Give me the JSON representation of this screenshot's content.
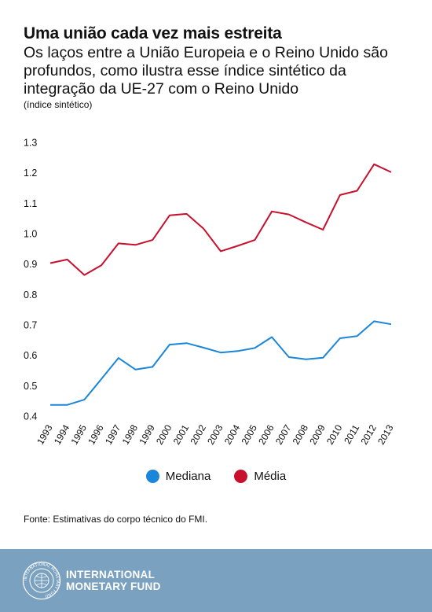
{
  "title": "Uma união cada vez mais estreita",
  "subtitle": "Os laços entre a União Europeia e o Reino Unido são profundos, como ilustra esse índice sintético da integração da UE-27 com o Reino Unido",
  "unit_note": "(índice sintético)",
  "source": "Fonte: Estimativas do corpo técnico do FMI.",
  "footer": {
    "org_line1": "INTERNATIONAL",
    "org_line2": "MONETARY FUND",
    "background_color": "#7aa1c0",
    "seal_icon": "imf-seal-icon",
    "seal_text": "INTERNATIONAL MONETARY FUND"
  },
  "chart_data": {
    "type": "line",
    "title": "",
    "xlabel": "",
    "ylabel": "",
    "x": [
      "1993",
      "1994",
      "1995",
      "1996",
      "1997",
      "1998",
      "1999",
      "2000",
      "2001",
      "2002",
      "2003",
      "2004",
      "2005",
      "2006",
      "2007",
      "2008",
      "2009",
      "2010",
      "2011",
      "2012",
      "2013"
    ],
    "ylim": [
      0.4,
      1.3
    ],
    "yticks": [
      "0.4",
      "0.5",
      "0.6",
      "0.7",
      "0.8",
      "0.9",
      "1.0",
      "1.1",
      "1.2",
      "1.3"
    ],
    "grid": false,
    "legend_position": "bottom",
    "series": [
      {
        "name": "Mediana",
        "color": "#1a86d9",
        "values": [
          0.437,
          0.437,
          0.454,
          0.522,
          0.591,
          0.553,
          0.562,
          0.635,
          0.64,
          0.625,
          0.609,
          0.614,
          0.624,
          0.66,
          0.594,
          0.587,
          0.592,
          0.656,
          0.663,
          0.712,
          0.702
        ]
      },
      {
        "name": "Média",
        "color": "#c8102e",
        "values": [
          0.903,
          0.915,
          0.864,
          0.896,
          0.968,
          0.963,
          0.979,
          1.06,
          1.065,
          1.016,
          0.942,
          0.96,
          0.979,
          1.073,
          1.063,
          1.037,
          1.013,
          1.127,
          1.141,
          1.228,
          1.202
        ]
      }
    ]
  }
}
